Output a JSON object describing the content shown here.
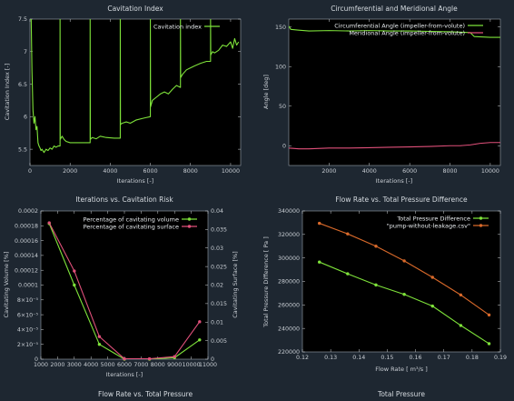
{
  "chart_data": [
    {
      "type": "line",
      "title": "Cavitation Index",
      "xlabel": "Iterations [-]",
      "ylabel": "Cavitation Index [-]",
      "xlim": [
        0,
        10500
      ],
      "ylim": [
        5.25,
        7.5
      ],
      "x_ticks": [
        0,
        2000,
        4000,
        6000,
        8000,
        10000
      ],
      "y_ticks": [
        5.5,
        6,
        6.5,
        7,
        7.5
      ],
      "legend": "top-right",
      "grid": false,
      "series": [
        {
          "name": "Cavitation index",
          "color": "#7ee23a",
          "x": [
            0,
            60,
            100,
            150,
            200,
            250,
            300,
            350,
            400,
            450,
            500,
            550,
            600,
            700,
            800,
            900,
            1000,
            1100,
            1200,
            1300,
            1400,
            1500,
            1500,
            1510,
            1600,
            1700,
            1800,
            2000,
            2500,
            2999,
            2999,
            3010,
            3100,
            3300,
            3500,
            3800,
            4200,
            4500,
            4500,
            4510,
            4600,
            4800,
            5000,
            5300,
            5700,
            6000,
            6000,
            6010,
            6100,
            6300,
            6500,
            6700,
            6900,
            7100,
            7300,
            7500,
            7500,
            7510,
            7600,
            7800,
            8000,
            8200,
            8500,
            8800,
            9000,
            9000,
            9010,
            9100,
            9200,
            9400,
            9600,
            9800,
            10000,
            10100,
            10200,
            10300,
            10400
          ],
          "values": [
            7.5,
            7.5,
            6.7,
            6.1,
            5.9,
            6.0,
            5.8,
            5.85,
            5.6,
            5.55,
            5.52,
            5.48,
            5.5,
            5.45,
            5.5,
            5.48,
            5.52,
            5.5,
            5.55,
            5.53,
            5.55,
            5.55,
            7.5,
            5.65,
            5.7,
            5.65,
            5.62,
            5.6,
            5.6,
            5.6,
            7.5,
            5.65,
            5.68,
            5.66,
            5.7,
            5.68,
            5.67,
            5.67,
            7.5,
            5.88,
            5.9,
            5.92,
            5.9,
            5.95,
            5.98,
            6.0,
            7.5,
            6.15,
            6.25,
            6.3,
            6.35,
            6.38,
            6.35,
            6.42,
            6.48,
            6.45,
            7.5,
            6.6,
            6.65,
            6.72,
            6.75,
            6.78,
            6.82,
            6.85,
            6.85,
            7.5,
            6.95,
            7.0,
            6.98,
            7.02,
            7.1,
            7.08,
            7.15,
            7.05,
            7.2,
            7.1,
            7.15
          ]
        }
      ]
    },
    {
      "type": "line",
      "title": "Circumferential and Meridional Angle",
      "xlabel": "Iterations [-]",
      "ylabel": "Angle [deg]",
      "xlim": [
        0,
        10500
      ],
      "ylim": [
        -25,
        160
      ],
      "x_ticks": [
        2000,
        4000,
        6000,
        8000,
        10000
      ],
      "y_ticks": [
        0,
        50,
        100,
        150
      ],
      "legend": "top-right",
      "grid": false,
      "series": [
        {
          "name": "Circumferential Angle (impeller-from-volute)",
          "color": "#7ee23a",
          "x": [
            0,
            100,
            500,
            1000,
            2000,
            3000,
            4000,
            5000,
            6000,
            7000,
            8000,
            9000,
            9200,
            10000,
            10500
          ],
          "values": [
            151,
            147,
            146,
            145,
            145.5,
            145,
            145.5,
            145,
            145,
            144.5,
            144,
            143,
            138,
            137,
            137
          ]
        },
        {
          "name": "Meridional Angle (impeller-from-volute)",
          "color": "#e0507a",
          "x": [
            0,
            500,
            1000,
            2000,
            3000,
            4000,
            5000,
            6000,
            7000,
            8000,
            8500,
            9000,
            9500,
            10000,
            10500
          ],
          "values": [
            -3,
            -4,
            -4,
            -3,
            -3,
            -2.5,
            -2,
            -1.5,
            -1,
            0,
            0,
            1,
            3,
            4,
            4
          ]
        }
      ]
    },
    {
      "type": "line",
      "title": "Iterations  vs. Cavitation Risk",
      "xlabel": "Iterations [-]",
      "ylabel": "Cavitating Volume [%]",
      "y2label": "Cavitating Surface [%]",
      "xlim": [
        1000,
        11000
      ],
      "ylim": [
        0,
        0.0002
      ],
      "y2lim": [
        0,
        0.04
      ],
      "x_ticks": [
        1000,
        2000,
        3000,
        4000,
        5000,
        6000,
        7000,
        8000,
        9000,
        10000,
        11000
      ],
      "y_tick_labels": [
        "0",
        "2×10⁻⁵",
        "4×10⁻⁵",
        "6×10⁻⁵",
        "8×10⁻⁵",
        "0.0001",
        "0.00012",
        "0.00014",
        "0.00016",
        "0.00018",
        "0.0002"
      ],
      "y2_tick_labels": [
        "0",
        "0.005",
        "0.01",
        "0.015",
        "0.02",
        "0.025",
        "0.03",
        "0.035",
        "0.04"
      ],
      "legend": "top-right",
      "grid": false,
      "series": [
        {
          "name": "Percentage of cavitating volume",
          "color": "#7ee23a",
          "axis": "left",
          "x": [
            1500,
            3000,
            4500,
            6000,
            7500,
            9000,
            10500
          ],
          "values": [
            0.000183,
            0.0001,
            2e-05,
            0.0,
            0.0,
            2e-06,
            2.6e-05
          ]
        },
        {
          "name": "Percentage of cavitating surface",
          "color": "#e0507a",
          "axis": "right",
          "x": [
            1500,
            3000,
            4500,
            6000,
            7500,
            9000,
            10500
          ],
          "values": [
            0.0368,
            0.0238,
            0.0061,
            0.0001,
            0.0001,
            0.0007,
            0.0101
          ]
        }
      ]
    },
    {
      "type": "line",
      "title": "Flow Rate vs. Total Pressure Difference",
      "xlabel": "Flow Rate [ m³/s ]",
      "ylabel": "Total Pressure Difference [ Pa ]",
      "xlim": [
        0.12,
        0.19
      ],
      "ylim": [
        220000,
        340000
      ],
      "x_ticks": [
        "0.12",
        "0.13",
        "0.14",
        "0.15",
        "0.16",
        "0.17",
        "0.18",
        "0.19"
      ],
      "y_ticks": [
        220000,
        240000,
        260000,
        280000,
        300000,
        320000,
        340000
      ],
      "legend": "top-right",
      "grid": false,
      "series": [
        {
          "name": "Total Pressure Difference",
          "color": "#7ee23a",
          "x": [
            0.126,
            0.136,
            0.146,
            0.156,
            0.166,
            0.176,
            0.186
          ],
          "values": [
            296500,
            286500,
            277000,
            269000,
            259000,
            242500,
            227000
          ]
        },
        {
          "name": "\"pump-without-leakage.csv\"",
          "color": "#d8692a",
          "x": [
            0.126,
            0.136,
            0.146,
            0.156,
            0.166,
            0.176,
            0.186
          ],
          "values": [
            329500,
            320500,
            310000,
            297500,
            283500,
            268500,
            251500
          ]
        }
      ]
    }
  ],
  "bottom_titles": {
    "left": "Flow Rate vs. Total Pressure",
    "right": "Total Pressure"
  }
}
